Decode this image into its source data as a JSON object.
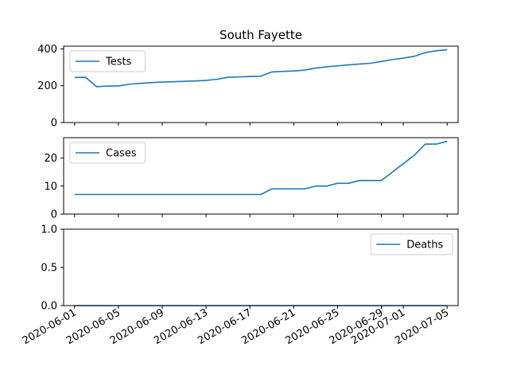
{
  "chart_data": {
    "type": "line",
    "title": "South Fayette",
    "line_color": "#1f77b4",
    "x_tick_labels": [
      "2020-06-01",
      "2020-06-05",
      "2020-06-09",
      "2020-06-13",
      "2020-06-17",
      "2020-06-21",
      "2020-06-25",
      "2020-06-29",
      "2020-07-01",
      "2020-07-05"
    ],
    "x_tick_values": [
      "2020-06-01",
      "2020-06-05",
      "2020-06-09",
      "2020-06-13",
      "2020-06-17",
      "2020-06-21",
      "2020-06-25",
      "2020-06-29",
      "2020-07-01",
      "2020-07-05"
    ],
    "x_range": [
      "2020-05-31",
      "2020-07-06"
    ],
    "dates": [
      "2020-06-01",
      "2020-06-02",
      "2020-06-03",
      "2020-06-04",
      "2020-06-05",
      "2020-06-06",
      "2020-06-07",
      "2020-06-08",
      "2020-06-09",
      "2020-06-10",
      "2020-06-11",
      "2020-06-12",
      "2020-06-13",
      "2020-06-14",
      "2020-06-15",
      "2020-06-16",
      "2020-06-17",
      "2020-06-18",
      "2020-06-19",
      "2020-06-20",
      "2020-06-21",
      "2020-06-22",
      "2020-06-23",
      "2020-06-24",
      "2020-06-25",
      "2020-06-26",
      "2020-06-27",
      "2020-06-28",
      "2020-06-29",
      "2020-06-30",
      "2020-07-01",
      "2020-07-02",
      "2020-07-03",
      "2020-07-04",
      "2020-07-05"
    ],
    "panels": [
      {
        "legend": "Tests",
        "legend_position": "upper left",
        "ylim": [
          0,
          415
        ],
        "yticks": [
          0,
          200,
          400
        ],
        "ytick_labels": [
          "0",
          "200",
          "400"
        ],
        "values": [
          245,
          246,
          195,
          198,
          199,
          208,
          213,
          217,
          220,
          222,
          224,
          226,
          229,
          235,
          246,
          248,
          250,
          252,
          275,
          278,
          280,
          285,
          296,
          303,
          308,
          313,
          318,
          322,
          332,
          342,
          350,
          360,
          380,
          390,
          396
        ]
      },
      {
        "legend": "Cases",
        "legend_position": "upper left",
        "ylim": [
          0,
          27.3
        ],
        "yticks": [
          0,
          10,
          20
        ],
        "ytick_labels": [
          "0",
          "10",
          "20"
        ],
        "values": [
          7,
          7,
          7,
          7,
          7,
          7,
          7,
          7,
          7,
          7,
          7,
          7,
          7,
          7,
          7,
          7,
          7,
          7,
          9,
          9,
          9,
          9,
          10,
          10,
          11,
          11,
          12,
          12,
          12,
          15,
          18,
          21,
          25,
          25,
          26
        ]
      },
      {
        "legend": "Deaths",
        "legend_position": "upper right",
        "ylim": [
          0,
          1.0
        ],
        "yticks": [
          0,
          0.5,
          1.0
        ],
        "ytick_labels": [
          "0.0",
          "0.5",
          "1.0"
        ],
        "values": [
          0,
          0,
          0,
          0,
          0,
          0,
          0,
          0,
          0,
          0,
          0,
          0,
          0,
          0,
          0,
          0,
          0,
          0,
          0,
          0,
          0,
          0,
          0,
          0,
          0,
          0,
          0,
          0,
          0,
          0,
          0,
          0,
          0,
          0,
          0
        ]
      }
    ]
  }
}
